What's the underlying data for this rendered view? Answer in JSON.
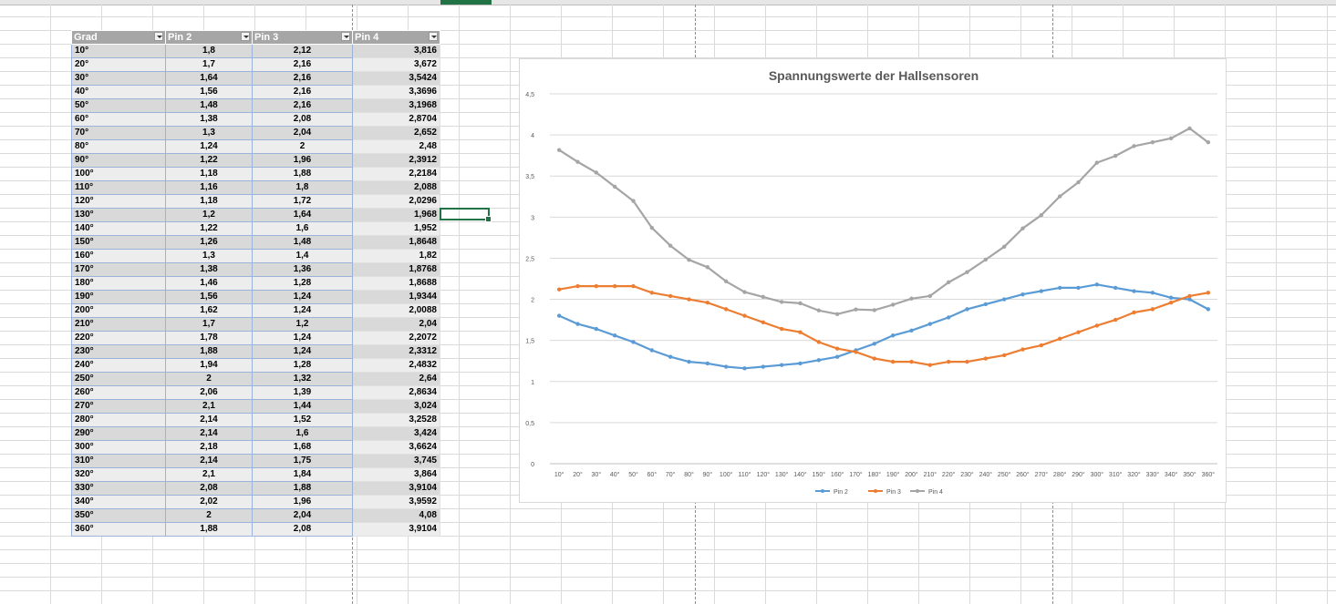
{
  "table": {
    "headers": [
      "Grad",
      "Pin 2",
      "Pin 3",
      "Pin 4"
    ],
    "rows": [
      [
        "10°",
        "1,8",
        "2,12",
        "3,816"
      ],
      [
        "20°",
        "1,7",
        "2,16",
        "3,672"
      ],
      [
        "30°",
        "1,64",
        "2,16",
        "3,5424"
      ],
      [
        "40°",
        "1,56",
        "2,16",
        "3,3696"
      ],
      [
        "50°",
        "1,48",
        "2,16",
        "3,1968"
      ],
      [
        "60°",
        "1,38",
        "2,08",
        "2,8704"
      ],
      [
        "70°",
        "1,3",
        "2,04",
        "2,652"
      ],
      [
        "80°",
        "1,24",
        "2",
        "2,48"
      ],
      [
        "90°",
        "1,22",
        "1,96",
        "2,3912"
      ],
      [
        "100°",
        "1,18",
        "1,88",
        "2,2184"
      ],
      [
        "110°",
        "1,16",
        "1,8",
        "2,088"
      ],
      [
        "120°",
        "1,18",
        "1,72",
        "2,0296"
      ],
      [
        "130°",
        "1,2",
        "1,64",
        "1,968"
      ],
      [
        "140°",
        "1,22",
        "1,6",
        "1,952"
      ],
      [
        "150°",
        "1,26",
        "1,48",
        "1,8648"
      ],
      [
        "160°",
        "1,3",
        "1,4",
        "1,82"
      ],
      [
        "170°",
        "1,38",
        "1,36",
        "1,8768"
      ],
      [
        "180°",
        "1,46",
        "1,28",
        "1,8688"
      ],
      [
        "190°",
        "1,56",
        "1,24",
        "1,9344"
      ],
      [
        "200°",
        "1,62",
        "1,24",
        "2,0088"
      ],
      [
        "210°",
        "1,7",
        "1,2",
        "2,04"
      ],
      [
        "220°",
        "1,78",
        "1,24",
        "2,2072"
      ],
      [
        "230°",
        "1,88",
        "1,24",
        "2,3312"
      ],
      [
        "240°",
        "1,94",
        "1,28",
        "2,4832"
      ],
      [
        "250°",
        "2",
        "1,32",
        "2,64"
      ],
      [
        "260°",
        "2,06",
        "1,39",
        "2,8634"
      ],
      [
        "270°",
        "2,1",
        "1,44",
        "3,024"
      ],
      [
        "280°",
        "2,14",
        "1,52",
        "3,2528"
      ],
      [
        "290°",
        "2,14",
        "1,6",
        "3,424"
      ],
      [
        "300°",
        "2,18",
        "1,68",
        "3,6624"
      ],
      [
        "310°",
        "2,14",
        "1,75",
        "3,745"
      ],
      [
        "320°",
        "2,1",
        "1,84",
        "3,864"
      ],
      [
        "330°",
        "2,08",
        "1,88",
        "3,9104"
      ],
      [
        "340°",
        "2,02",
        "1,96",
        "3,9592"
      ],
      [
        "350°",
        "2",
        "2,04",
        "4,08"
      ],
      [
        "360°",
        "1,88",
        "2,08",
        "3,9104"
      ]
    ]
  },
  "chart_data": {
    "type": "line",
    "title": "Spannungswerte der Hallsensoren",
    "xlabel": "",
    "ylabel": "",
    "ylim": [
      0,
      4.5
    ],
    "yticks": [
      0,
      0.5,
      1,
      1.5,
      2,
      2.5,
      3,
      3.5,
      4,
      4.5
    ],
    "ytick_labels": [
      "0",
      "0,5",
      "1",
      "1,5",
      "2",
      "2,5",
      "3",
      "3,5",
      "4",
      "4,5"
    ],
    "grid": true,
    "legend": "bottom",
    "categories": [
      "10°",
      "20°",
      "30°",
      "40°",
      "50°",
      "60°",
      "70°",
      "80°",
      "90°",
      "100°",
      "110°",
      "120°",
      "130°",
      "140°",
      "150°",
      "160°",
      "170°",
      "180°",
      "190°",
      "200°",
      "210°",
      "220°",
      "230°",
      "240°",
      "250°",
      "260°",
      "270°",
      "280°",
      "290°",
      "300°",
      "310°",
      "320°",
      "330°",
      "340°",
      "350°",
      "360°"
    ],
    "series": [
      {
        "name": "Pin 2",
        "color": "#5b9bd5",
        "values": [
          1.8,
          1.7,
          1.64,
          1.56,
          1.48,
          1.38,
          1.3,
          1.24,
          1.22,
          1.18,
          1.16,
          1.18,
          1.2,
          1.22,
          1.26,
          1.3,
          1.38,
          1.46,
          1.56,
          1.62,
          1.7,
          1.78,
          1.88,
          1.94,
          2,
          2.06,
          2.1,
          2.14,
          2.14,
          2.18,
          2.14,
          2.1,
          2.08,
          2.02,
          2,
          1.88
        ]
      },
      {
        "name": "Pin 3",
        "color": "#ed7d31",
        "values": [
          2.12,
          2.16,
          2.16,
          2.16,
          2.16,
          2.08,
          2.04,
          2,
          1.96,
          1.88,
          1.8,
          1.72,
          1.64,
          1.6,
          1.48,
          1.4,
          1.36,
          1.28,
          1.24,
          1.24,
          1.2,
          1.24,
          1.24,
          1.28,
          1.32,
          1.39,
          1.44,
          1.52,
          1.6,
          1.68,
          1.75,
          1.84,
          1.88,
          1.96,
          2.04,
          2.08
        ]
      },
      {
        "name": "Pin 4",
        "color": "#a5a5a5",
        "values": [
          3.816,
          3.672,
          3.5424,
          3.3696,
          3.1968,
          2.8704,
          2.652,
          2.48,
          2.3912,
          2.2184,
          2.088,
          2.0296,
          1.968,
          1.952,
          1.8648,
          1.82,
          1.8768,
          1.8688,
          1.9344,
          2.0088,
          2.04,
          2.2072,
          2.3312,
          2.4832,
          2.64,
          2.8634,
          3.024,
          3.2528,
          3.424,
          3.6624,
          3.745,
          3.864,
          3.9104,
          3.9592,
          4.08,
          3.9104
        ]
      }
    ]
  }
}
